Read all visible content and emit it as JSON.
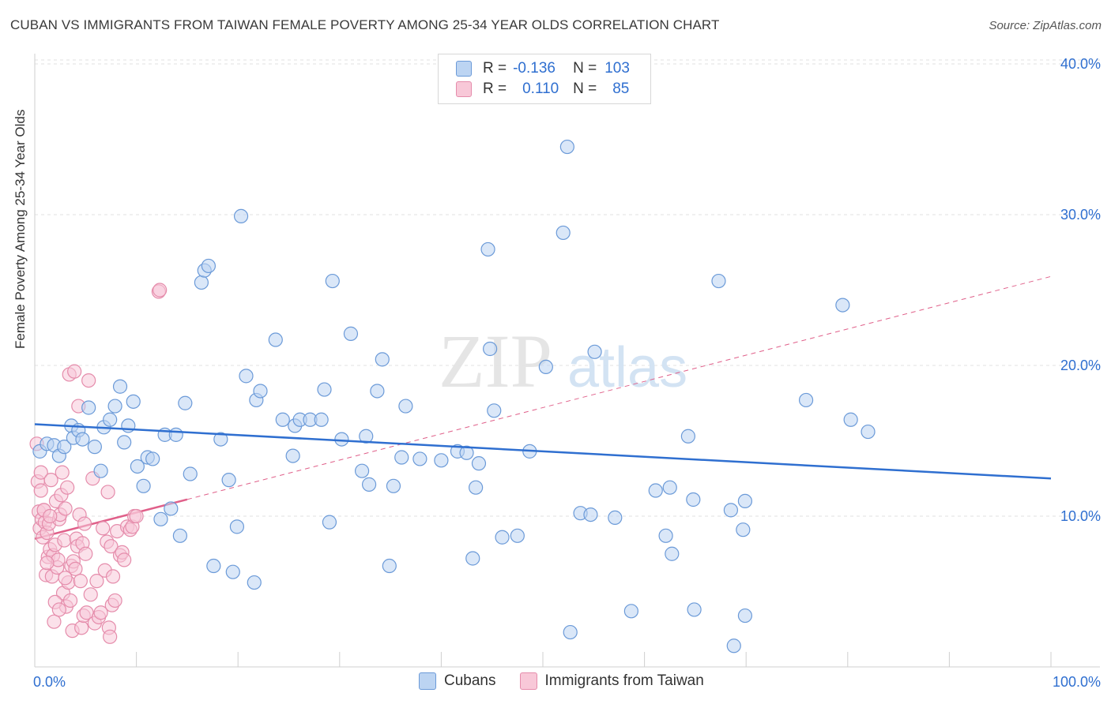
{
  "title": "CUBAN VS IMMIGRANTS FROM TAIWAN FEMALE POVERTY AMONG 25-34 YEAR OLDS CORRELATION CHART",
  "source": "Source: ZipAtlas.com",
  "watermark": {
    "zip": "ZIP",
    "atlas": "atlas"
  },
  "legend": {
    "r_label": "R =",
    "n_label": "N =",
    "rows": [
      {
        "r": "-0.136",
        "n": "103",
        "color": "#6b9ad8"
      },
      {
        "r": "0.110",
        "n": "85",
        "color": "#e58cab"
      }
    ]
  },
  "bottom_legend": {
    "cubans": "Cubans",
    "taiwan": "Immigrants from Taiwan"
  },
  "colors": {
    "blue": "#6b9ad8",
    "blue_fill": "#bcd4f2",
    "pink": "#e58cab",
    "pink_fill": "#f8c8d8",
    "blue_line": "#2f6fd0",
    "pink_line": "#e0608a",
    "tick_text": "#2f6fd0",
    "grid": "#e2e2e2"
  },
  "chart_data": {
    "type": "scatter",
    "title": "CUBAN VS IMMIGRANTS FROM TAIWAN FEMALE POVERTY AMONG 25-34 YEAR OLDS CORRELATION CHART",
    "xlabel": "",
    "ylabel": "Female Poverty Among 25-34 Year Olds",
    "xlim": [
      0,
      100
    ],
    "ylim": [
      0,
      42
    ],
    "x_tick_labels": [
      "0.0%",
      "100.0%"
    ],
    "y_ticks": [
      10,
      20,
      30,
      40
    ],
    "y_tick_labels": [
      "10.0%",
      "20.0%",
      "30.0%",
      "40.0%"
    ],
    "grid": true,
    "series": [
      {
        "name": "Cubans",
        "color": "#6b9ad8",
        "points": [
          [
            0.5,
            14.3
          ],
          [
            1.2,
            14.8
          ],
          [
            1.9,
            14.7
          ],
          [
            2.4,
            14.0
          ],
          [
            2.9,
            14.6
          ],
          [
            3.6,
            16.0
          ],
          [
            3.8,
            15.2
          ],
          [
            4.3,
            15.7
          ],
          [
            4.7,
            15.1
          ],
          [
            5.3,
            17.2
          ],
          [
            5.9,
            14.6
          ],
          [
            6.5,
            13.0
          ],
          [
            6.8,
            15.9
          ],
          [
            7.4,
            16.4
          ],
          [
            7.9,
            17.3
          ],
          [
            8.4,
            18.6
          ],
          [
            8.8,
            14.9
          ],
          [
            9.2,
            16.0
          ],
          [
            9.7,
            17.6
          ],
          [
            10.1,
            13.3
          ],
          [
            10.7,
            12.0
          ],
          [
            11.1,
            13.9
          ],
          [
            11.6,
            13.8
          ],
          [
            12.4,
            9.8
          ],
          [
            12.8,
            15.4
          ],
          [
            13.4,
            10.5
          ],
          [
            13.9,
            15.4
          ],
          [
            14.3,
            8.7
          ],
          [
            14.8,
            17.5
          ],
          [
            15.3,
            12.8
          ],
          [
            16.4,
            25.5
          ],
          [
            16.7,
            26.3
          ],
          [
            17.1,
            26.6
          ],
          [
            17.6,
            6.7
          ],
          [
            18.3,
            15.1
          ],
          [
            19.1,
            12.4
          ],
          [
            19.5,
            6.3
          ],
          [
            19.9,
            9.3
          ],
          [
            20.3,
            29.9
          ],
          [
            20.8,
            19.3
          ],
          [
            21.6,
            5.6
          ],
          [
            21.8,
            17.7
          ],
          [
            22.2,
            18.3
          ],
          [
            23.7,
            21.7
          ],
          [
            24.4,
            16.4
          ],
          [
            25.4,
            14.0
          ],
          [
            25.6,
            16.0
          ],
          [
            26.1,
            16.4
          ],
          [
            27.1,
            16.4
          ],
          [
            28.2,
            16.4
          ],
          [
            28.5,
            18.4
          ],
          [
            29.0,
            9.6
          ],
          [
            29.3,
            25.6
          ],
          [
            30.2,
            15.1
          ],
          [
            31.1,
            22.1
          ],
          [
            32.2,
            13.0
          ],
          [
            32.6,
            15.3
          ],
          [
            32.9,
            12.1
          ],
          [
            33.7,
            18.3
          ],
          [
            34.2,
            20.4
          ],
          [
            34.9,
            6.7
          ],
          [
            35.3,
            12.0
          ],
          [
            36.1,
            13.9
          ],
          [
            36.5,
            17.3
          ],
          [
            37.9,
            13.8
          ],
          [
            40.0,
            13.7
          ],
          [
            41.6,
            14.3
          ],
          [
            42.5,
            14.2
          ],
          [
            43.1,
            7.2
          ],
          [
            43.4,
            11.9
          ],
          [
            43.7,
            13.5
          ],
          [
            44.6,
            27.7
          ],
          [
            44.8,
            21.1
          ],
          [
            45.2,
            17.0
          ],
          [
            46.0,
            8.6
          ],
          [
            48.7,
            14.3
          ],
          [
            50.3,
            19.9
          ],
          [
            52.0,
            28.8
          ],
          [
            52.4,
            34.5
          ],
          [
            52.7,
            2.3
          ],
          [
            53.7,
            10.2
          ],
          [
            54.7,
            10.1
          ],
          [
            55.1,
            20.9
          ],
          [
            57.1,
            9.9
          ],
          [
            58.7,
            3.7
          ],
          [
            61.1,
            11.7
          ],
          [
            62.1,
            8.7
          ],
          [
            62.5,
            11.9
          ],
          [
            62.7,
            7.5
          ],
          [
            64.3,
            15.3
          ],
          [
            64.8,
            11.1
          ],
          [
            64.9,
            3.8
          ],
          [
            67.3,
            25.6
          ],
          [
            68.5,
            10.4
          ],
          [
            68.8,
            1.4
          ],
          [
            69.7,
            9.1
          ],
          [
            69.9,
            11.0
          ],
          [
            69.9,
            3.4
          ],
          [
            75.9,
            17.7
          ],
          [
            79.5,
            24.0
          ],
          [
            80.3,
            16.4
          ],
          [
            82.0,
            15.6
          ],
          [
            47.5,
            8.7
          ]
        ]
      },
      {
        "name": "Immigrants from Taiwan",
        "color": "#e58cab",
        "points": [
          [
            0.2,
            14.8
          ],
          [
            0.3,
            12.3
          ],
          [
            0.4,
            10.3
          ],
          [
            0.5,
            9.2
          ],
          [
            0.6,
            11.7
          ],
          [
            0.6,
            12.9
          ],
          [
            0.7,
            9.8
          ],
          [
            0.8,
            8.6
          ],
          [
            0.9,
            10.4
          ],
          [
            1.0,
            9.6
          ],
          [
            1.1,
            6.1
          ],
          [
            1.2,
            8.9
          ],
          [
            1.3,
            7.3
          ],
          [
            1.4,
            9.5
          ],
          [
            1.5,
            7.8
          ],
          [
            1.6,
            12.4
          ],
          [
            1.7,
            6.0
          ],
          [
            1.8,
            7.4
          ],
          [
            1.9,
            3.0
          ],
          [
            2.0,
            8.1
          ],
          [
            2.1,
            11.0
          ],
          [
            2.2,
            6.6
          ],
          [
            2.3,
            7.1
          ],
          [
            2.4,
            9.8
          ],
          [
            2.5,
            10.1
          ],
          [
            2.6,
            11.4
          ],
          [
            2.7,
            12.9
          ],
          [
            2.8,
            4.9
          ],
          [
            2.9,
            8.4
          ],
          [
            3.0,
            10.5
          ],
          [
            3.1,
            4.0
          ],
          [
            3.2,
            11.9
          ],
          [
            3.3,
            5.6
          ],
          [
            3.4,
            19.4
          ],
          [
            3.5,
            4.4
          ],
          [
            3.6,
            6.7
          ],
          [
            3.7,
            2.4
          ],
          [
            3.8,
            7.0
          ],
          [
            3.9,
            19.6
          ],
          [
            4.0,
            6.5
          ],
          [
            4.1,
            8.5
          ],
          [
            4.2,
            8.0
          ],
          [
            4.3,
            17.3
          ],
          [
            4.4,
            10.1
          ],
          [
            4.5,
            5.7
          ],
          [
            4.6,
            2.6
          ],
          [
            4.7,
            8.2
          ],
          [
            4.8,
            3.4
          ],
          [
            4.9,
            9.5
          ],
          [
            5.0,
            7.5
          ],
          [
            5.1,
            3.6
          ],
          [
            5.3,
            19.0
          ],
          [
            5.5,
            4.8
          ],
          [
            5.7,
            12.5
          ],
          [
            5.9,
            2.9
          ],
          [
            6.1,
            5.7
          ],
          [
            6.3,
            3.3
          ],
          [
            6.5,
            3.6
          ],
          [
            6.7,
            9.2
          ],
          [
            6.9,
            6.4
          ],
          [
            7.1,
            8.3
          ],
          [
            7.2,
            11.6
          ],
          [
            7.3,
            2.6
          ],
          [
            7.4,
            2.0
          ],
          [
            7.5,
            8.0
          ],
          [
            7.6,
            4.1
          ],
          [
            7.7,
            6.0
          ],
          [
            7.9,
            4.4
          ],
          [
            8.1,
            9.0
          ],
          [
            8.4,
            7.4
          ],
          [
            8.6,
            7.6
          ],
          [
            8.8,
            7.1
          ],
          [
            9.1,
            9.3
          ],
          [
            9.4,
            9.1
          ],
          [
            9.6,
            9.3
          ],
          [
            9.8,
            10.0
          ],
          [
            10.0,
            10.0
          ],
          [
            12.2,
            24.9
          ],
          [
            12.3,
            25.0
          ],
          [
            0.9,
            10.4
          ],
          [
            1.5,
            10.0
          ],
          [
            2.0,
            4.3
          ],
          [
            2.4,
            3.8
          ],
          [
            3.0,
            5.9
          ],
          [
            1.2,
            6.9
          ]
        ]
      }
    ],
    "trend_lines": [
      {
        "series": "Cubans",
        "x": [
          0,
          100
        ],
        "y": [
          16.1,
          12.5
        ]
      },
      {
        "series": "Immigrants from Taiwan",
        "solid_x": [
          0,
          15
        ],
        "dashed_x": [
          15,
          100
        ],
        "x": [
          0,
          100
        ],
        "y": [
          8.5,
          25.9
        ]
      }
    ]
  }
}
